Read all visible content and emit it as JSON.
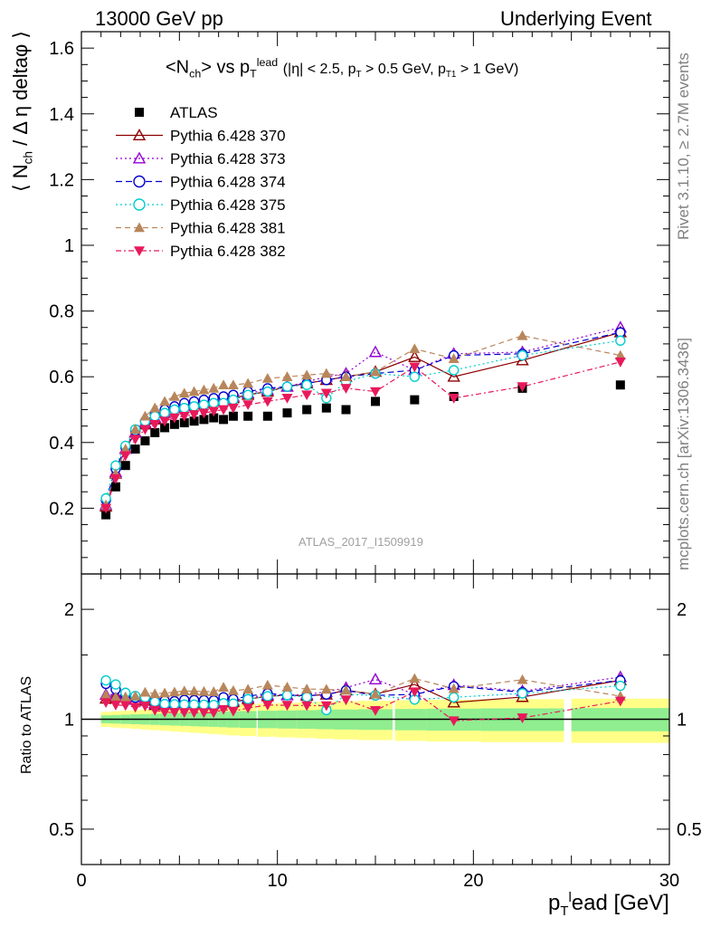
{
  "header": {
    "left": "13000 GeV pp",
    "right": "Underlying Event"
  },
  "side_labels": {
    "rivet": "Rivet 3.1.10, ≥ 2.7M events",
    "mcplots": "mcplots.cern.ch [arXiv:1306.3436]"
  },
  "watermark": "ATLAS_2017_I1509919",
  "chart_data": [
    {
      "type": "scatter",
      "title": "<Nch> vs pTlead (|η| < 2.5, pT > 0.5 GeV, pT1 > 1 GeV)",
      "title_main": "<N",
      "title_sub": "ch",
      "title_mid": "> vs p",
      "title_sub2": "T",
      "title_sup2": "lead",
      "title_cuts": "(|η| < 2.5, p",
      "title_cuts_sub": "T",
      "title_cuts_b": " > 0.5 GeV, p",
      "title_cuts_sub2": "T1",
      "title_cuts_c": " > 1 GeV)",
      "ylabel": "⟨ N_ch / Δη deltaφ ⟩",
      "ylabel_a": "⟨ N",
      "ylabel_sub": "ch",
      "ylabel_b": "/ Δ η deltaφ ⟩",
      "xlim": [
        0,
        30
      ],
      "ylim": [
        0,
        1.65
      ],
      "yticks": [
        0.2,
        0.4,
        0.6,
        0.8,
        1,
        1.2,
        1.4,
        1.6
      ],
      "ytick_labels": [
        "0.2",
        "0.4",
        "0.6",
        "0.8",
        "1",
        "1.2",
        "1.4",
        "1.6"
      ],
      "legend_position": "top-left",
      "x": [
        1.25,
        1.75,
        2.25,
        2.75,
        3.25,
        3.75,
        4.25,
        4.75,
        5.25,
        5.75,
        6.25,
        6.75,
        7.25,
        7.75,
        8.5,
        9.5,
        10.5,
        11.5,
        12.5,
        13.5,
        15.0,
        17.0,
        19.0,
        22.5,
        27.5
      ],
      "series": [
        {
          "name": "ATLAS",
          "color": "#000000",
          "marker": "square-filled",
          "values": [
            0.18,
            0.265,
            0.33,
            0.38,
            0.405,
            0.43,
            0.445,
            0.455,
            0.46,
            0.465,
            0.47,
            0.475,
            0.47,
            0.48,
            0.48,
            0.48,
            0.49,
            0.5,
            0.505,
            0.5,
            0.525,
            0.53,
            0.54,
            0.565,
            0.575
          ]
        },
        {
          "name": "Pythia 6.428 370",
          "color": "#8b0000",
          "marker": "triangle-open",
          "dash": "",
          "values": [
            0.205,
            0.305,
            0.38,
            0.43,
            0.455,
            0.47,
            0.49,
            0.505,
            0.51,
            0.515,
            0.52,
            0.525,
            0.53,
            0.535,
            0.545,
            0.555,
            0.57,
            0.58,
            0.59,
            0.6,
            0.615,
            0.66,
            0.6,
            0.65,
            0.735
          ]
        },
        {
          "name": "Pythia 6.428 373",
          "color": "#9400d3",
          "marker": "triangle-open",
          "dash": "2,3",
          "values": [
            0.21,
            0.31,
            0.38,
            0.43,
            0.46,
            0.475,
            0.49,
            0.505,
            0.51,
            0.52,
            0.525,
            0.525,
            0.535,
            0.54,
            0.55,
            0.56,
            0.57,
            0.585,
            0.6,
            0.61,
            0.675,
            0.62,
            0.67,
            0.675,
            0.75
          ]
        },
        {
          "name": "Pythia 6.428 374",
          "color": "#0000cd",
          "marker": "circle-open",
          "dash": "7,4",
          "values": [
            0.225,
            0.32,
            0.385,
            0.435,
            0.465,
            0.485,
            0.5,
            0.51,
            0.52,
            0.525,
            0.53,
            0.535,
            0.54,
            0.545,
            0.555,
            0.565,
            0.57,
            0.58,
            0.59,
            0.6,
            0.61,
            0.62,
            0.665,
            0.67,
            0.735
          ]
        },
        {
          "name": "Pythia 6.428 375",
          "color": "#00cdcd",
          "marker": "circle-open",
          "dash": "2,3",
          "values": [
            0.23,
            0.33,
            0.39,
            0.44,
            0.465,
            0.48,
            0.49,
            0.5,
            0.505,
            0.51,
            0.515,
            0.52,
            0.52,
            0.53,
            0.545,
            0.555,
            0.57,
            0.575,
            0.535,
            0.585,
            0.61,
            0.6,
            0.62,
            0.665,
            0.71
          ]
        },
        {
          "name": "Pythia 6.428 381",
          "color": "#b8865b",
          "marker": "triangle-filled",
          "dash": "6,4",
          "values": [
            0.21,
            0.305,
            0.38,
            0.44,
            0.48,
            0.505,
            0.525,
            0.54,
            0.55,
            0.555,
            0.56,
            0.565,
            0.575,
            0.575,
            0.58,
            0.595,
            0.6,
            0.605,
            0.61,
            0.6,
            0.615,
            0.685,
            0.655,
            0.725,
            0.665
          ]
        },
        {
          "name": "Pythia 6.428 382",
          "color": "#e8195a",
          "marker": "triangle-down-filled",
          "dash": "6,3,2,3",
          "values": [
            0.2,
            0.29,
            0.36,
            0.41,
            0.44,
            0.455,
            0.465,
            0.475,
            0.48,
            0.485,
            0.49,
            0.495,
            0.5,
            0.505,
            0.515,
            0.525,
            0.535,
            0.545,
            0.55,
            0.565,
            0.555,
            0.63,
            0.535,
            0.57,
            0.645
          ]
        }
      ]
    },
    {
      "type": "scatter",
      "title": "",
      "ylabel": "Ratio to ATLAS",
      "xlabel": "p_T^l ead [GeV]",
      "xlabel_a": "p",
      "xlabel_sub": "T",
      "xlabel_sup": "l",
      "xlabel_b": "ead [GeV]",
      "xlim": [
        0,
        30
      ],
      "ylim": [
        0.4,
        2.5
      ],
      "yscale": "log",
      "yticks": [
        0.5,
        1,
        2
      ],
      "ytick_labels": [
        "0.5",
        "1",
        "2"
      ],
      "xticks": [
        0,
        10,
        20,
        30
      ],
      "xtick_labels": [
        "0",
        "10",
        "20",
        "30"
      ],
      "reference_line": 1,
      "uncertainty_band_inner_color": "#90ee90",
      "uncertainty_band_outer_color": "#ffff88"
    }
  ]
}
